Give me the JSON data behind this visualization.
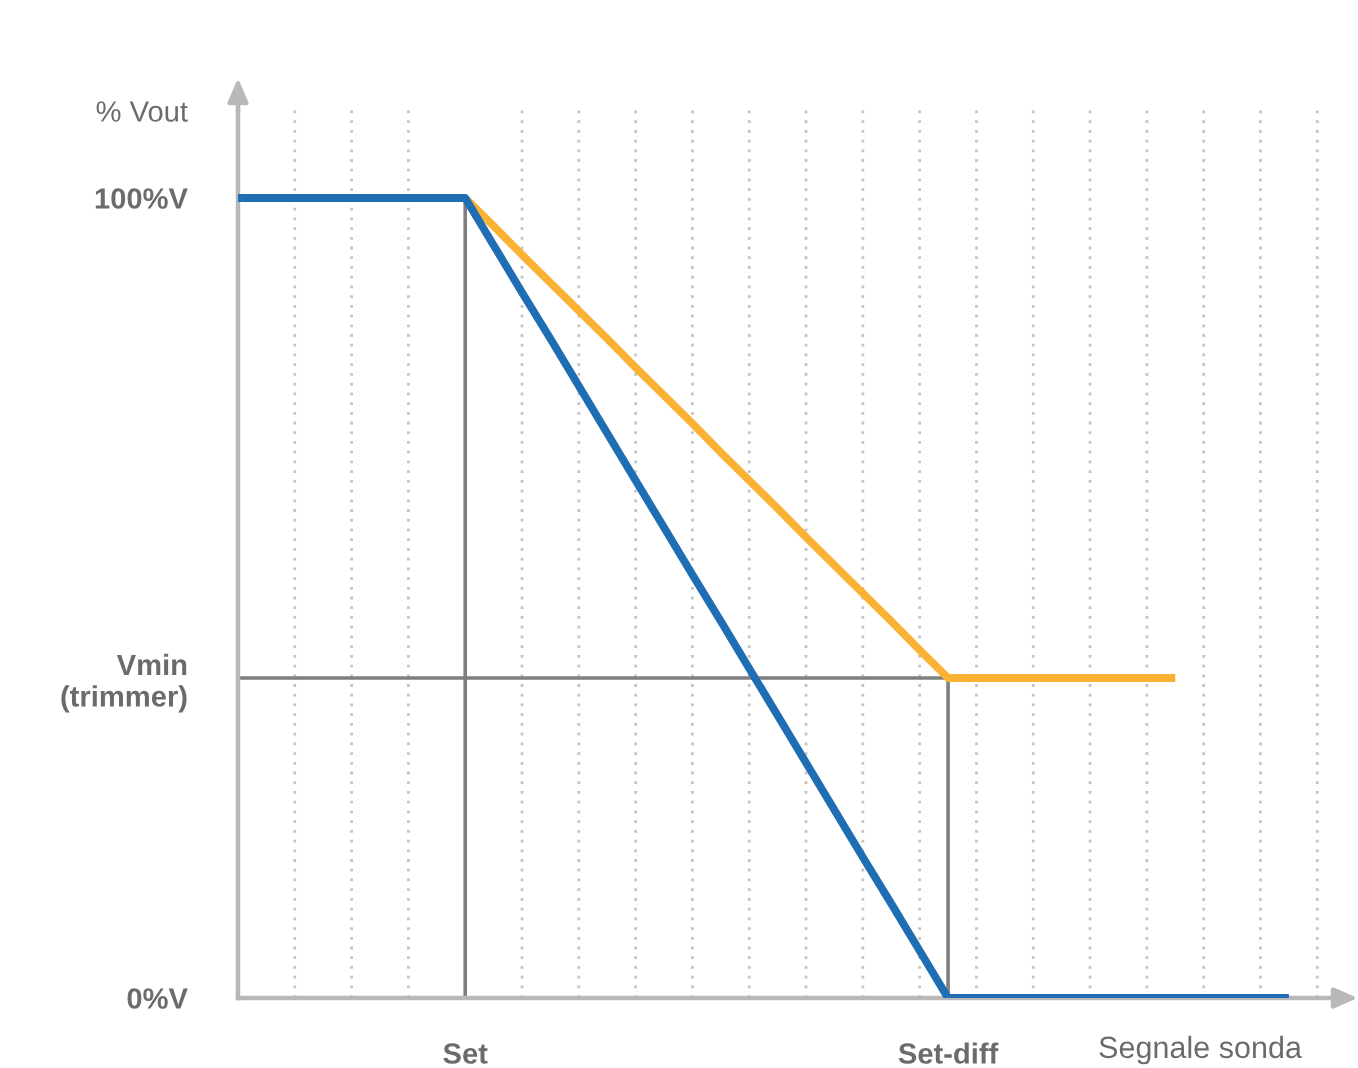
{
  "chart_data": {
    "type": "line",
    "ylabel": "% Vout",
    "xlabel": "Segnale sonda",
    "categories": [
      null,
      null,
      null,
      null,
      null,
      null,
      null,
      null,
      "Set",
      null,
      null,
      null,
      null,
      null,
      null,
      null,
      null,
      null,
      null,
      null,
      null,
      null,
      null,
      null,
      null,
      "Set-diff",
      null,
      null,
      null,
      null,
      null,
      null,
      null,
      null,
      null,
      null,
      null,
      null,
      null
    ],
    "ylim": [
      0,
      111
    ],
    "yticks": [
      {
        "value": 0,
        "label": "0%V"
      },
      {
        "value": 40,
        "label": "Vmin\n(trimmer)"
      },
      {
        "value": 100,
        "label": "100%V"
      }
    ],
    "grid": "x",
    "ref_lines": [
      {
        "axis": "x",
        "value": "Set",
        "color": "#7f7f7f"
      },
      {
        "axis": "x",
        "value": "Set-diff",
        "color": "#7f7f7f"
      },
      {
        "axis": "y",
        "value": 40,
        "color": "#7f7f7f"
      }
    ],
    "series": [
      {
        "color": "#f9b233",
        "values": [
          null,
          null,
          null,
          null,
          null,
          null,
          null,
          null,
          100,
          96.5,
          92.9,
          89.4,
          85.9,
          82.4,
          78.8,
          75.3,
          71.8,
          68.2,
          64.7,
          61.2,
          57.6,
          54.1,
          50.6,
          47.1,
          43.5,
          40,
          40,
          40,
          40,
          40,
          40,
          40,
          40,
          40,
          null,
          null,
          null,
          null,
          null
        ]
      },
      {
        "color": "#1f6db3",
        "values": [
          100,
          100,
          100,
          100,
          100,
          100,
          100,
          100,
          100,
          94.1,
          88.2,
          82.4,
          76.5,
          70.6,
          64.7,
          58.8,
          52.9,
          47.1,
          41.2,
          35.3,
          29.4,
          23.5,
          17.6,
          11.8,
          5.9,
          0,
          0,
          0,
          0,
          0,
          0,
          0,
          0,
          0,
          0,
          0,
          0,
          0,
          null
        ]
      }
    ]
  }
}
